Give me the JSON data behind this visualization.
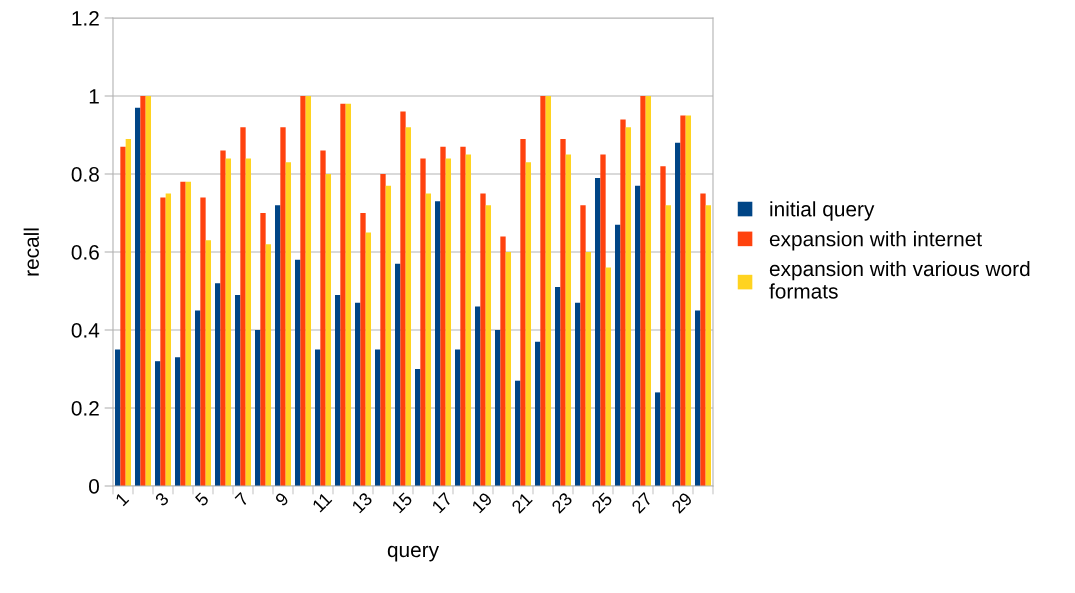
{
  "chart_data": {
    "type": "bar",
    "xlabel": "query",
    "ylabel": "recall",
    "categories": [
      "1",
      null,
      "3",
      null,
      "5",
      null,
      "7",
      null,
      "9",
      null,
      "11",
      null,
      "13",
      null,
      "15",
      null,
      "17",
      null,
      "19",
      null,
      "21",
      null,
      "23",
      null,
      "25",
      null,
      "27",
      null,
      "29",
      null
    ],
    "series": [
      {
        "name": "initial query",
        "color": "#004586",
        "values": [
          0.35,
          0.97,
          0.32,
          0.33,
          0.45,
          0.52,
          0.49,
          0.4,
          0.72,
          0.58,
          0.35,
          0.49,
          0.47,
          0.35,
          0.57,
          0.3,
          0.73,
          0.35,
          0.46,
          0.4,
          0.27,
          0.37,
          0.51,
          0.47,
          0.79,
          0.67,
          0.77,
          0.24,
          0.88,
          0.45
        ]
      },
      {
        "name": "expansion with internet",
        "color": "#ff420e",
        "values": [
          0.87,
          1,
          0.74,
          0.78,
          0.74,
          0.86,
          0.92,
          0.7,
          0.92,
          1,
          0.86,
          0.98,
          0.7,
          0.8,
          0.96,
          0.84,
          0.87,
          0.87,
          0.75,
          0.64,
          0.89,
          1,
          0.89,
          0.72,
          0.85,
          0.94,
          1,
          0.82,
          0.95,
          0.75
        ]
      },
      {
        "name": "expansion with various word formats",
        "color": "#ffd320",
        "values": [
          0.89,
          1,
          0.75,
          0.78,
          0.63,
          0.84,
          0.84,
          0.62,
          0.83,
          1,
          0.8,
          0.98,
          0.65,
          0.77,
          0.92,
          0.75,
          0.84,
          0.85,
          0.72,
          0.6,
          0.83,
          1,
          0.85,
          0.6,
          0.56,
          0.92,
          1,
          0.72,
          0.95,
          0.72
        ]
      }
    ],
    "ylim": [
      0,
      1.2
    ],
    "yticks": [
      0,
      0.2,
      0.4,
      0.6,
      0.8,
      1,
      1.2
    ],
    "grid": "y",
    "legend": "right"
  }
}
